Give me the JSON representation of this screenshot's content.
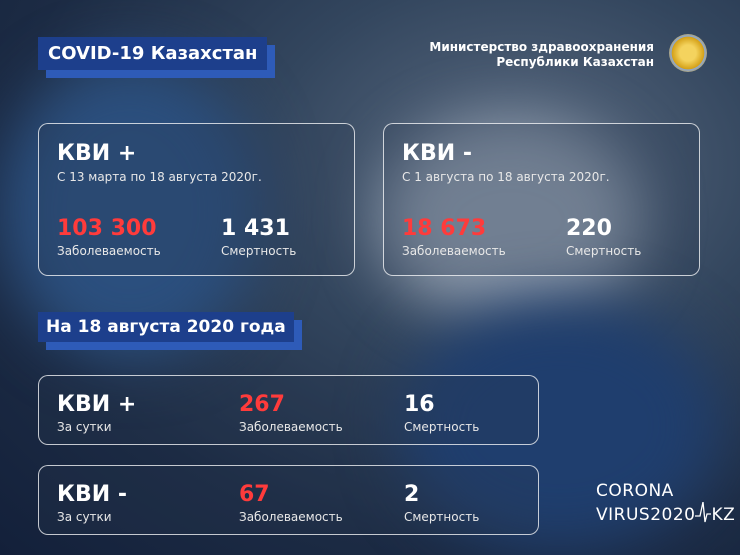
{
  "header": {
    "title": "COVID-19 Казахстан",
    "ministry_line1": "Министерство здравоохранения",
    "ministry_line2": "Республики Казахстан"
  },
  "cumulative": [
    {
      "heading": "КВИ +",
      "period": "С 13 марта по 18 августа 2020г.",
      "cases": "103 300",
      "cases_label": "Заболеваемость",
      "deaths": "1 431",
      "deaths_label": "Смертность"
    },
    {
      "heading": "КВИ -",
      "period": "С 1 августа по 18 августа 2020г.",
      "cases": "18 673",
      "cases_label": "Заболеваемость",
      "deaths": "220",
      "deaths_label": "Смертность"
    }
  ],
  "daily_title": "На 18 августа 2020 года",
  "daily": [
    {
      "heading": "КВИ +",
      "period": "За сутки",
      "cases": "267",
      "cases_label": "Заболеваемость",
      "deaths": "16",
      "deaths_label": "Смертность"
    },
    {
      "heading": "КВИ -",
      "period": "За сутки",
      "cases": "67",
      "cases_label": "Заболеваемость",
      "deaths": "2",
      "deaths_label": "Смертность"
    }
  ],
  "logo": {
    "line1": "CORONA",
    "line2": "VIRUS2020",
    "suffix": "KZ"
  },
  "colors": {
    "accent": "#1d3f8c",
    "highlight": "#ff3b3b"
  }
}
